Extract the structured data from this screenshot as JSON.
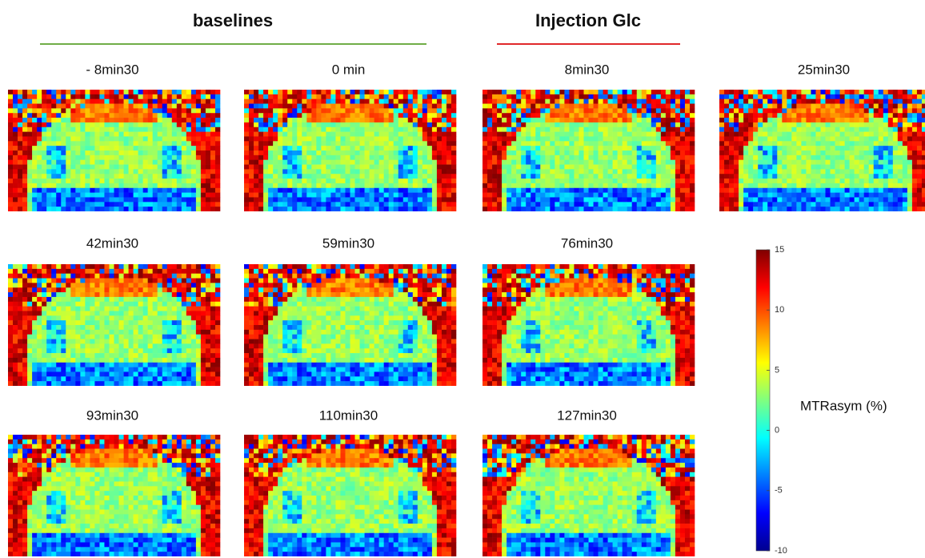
{
  "header": {
    "groups": [
      {
        "title": "baselines"
      },
      {
        "title": "Injection Glc"
      }
    ]
  },
  "panels": [
    {
      "label": "- 8min30"
    },
    {
      "label": "0 min"
    },
    {
      "label": "8min30"
    },
    {
      "label": "25min30"
    },
    {
      "label": "42min30"
    },
    {
      "label": "59min30"
    },
    {
      "label": "76min30"
    },
    {
      "label": "93min30"
    },
    {
      "label": "110min30"
    },
    {
      "label": "127min30"
    }
  ],
  "colorbar": {
    "label": "MTRasym (%)",
    "range": [
      -10,
      15
    ],
    "ticks": [
      15,
      10,
      5,
      0,
      -5,
      -10
    ]
  }
}
